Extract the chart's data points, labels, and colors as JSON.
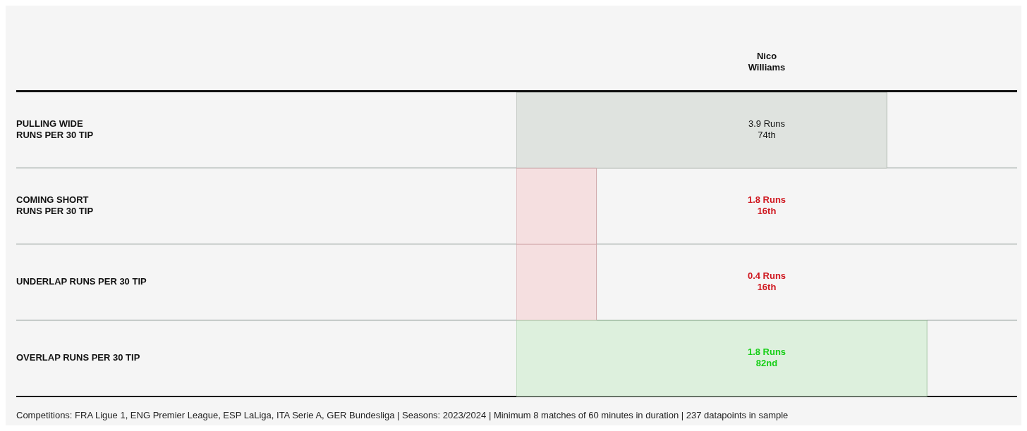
{
  "chart_data": {
    "type": "bar",
    "orientation": "horizontal",
    "categories": [
      "PULLING WIDE\nRUNS PER 30 TIP",
      "COMING SHORT\nRUNS PER 30 TIP",
      "UNDERLAP RUNS PER 30 TIP",
      "OVERLAP RUNS PER 30 TIP"
    ],
    "series": [
      {
        "name": "Nico Williams",
        "values": [
          74,
          16,
          16,
          82
        ],
        "colors": [
          "#dfe3df",
          "#f5dfe0",
          "#f5dfe0",
          "#ddf0dd"
        ],
        "value_labels": [
          "3.9 Runs\n74th",
          "1.8 Runs\n16th",
          "0.4 Runs\n16th",
          "1.8 Runs\n82nd"
        ]
      }
    ],
    "xlim": [
      0,
      100
    ],
    "tick_labels": "y",
    "annotations": [
      "Competitions: FRA Ligue 1, ENG Premier League, ESP LaLiga, ITA Serie A, GER Bundesliga | Seasons: 2023/2024 | Minimum 8 matches of 60 minutes in duration | 237 datapoints in sample"
    ]
  }
}
